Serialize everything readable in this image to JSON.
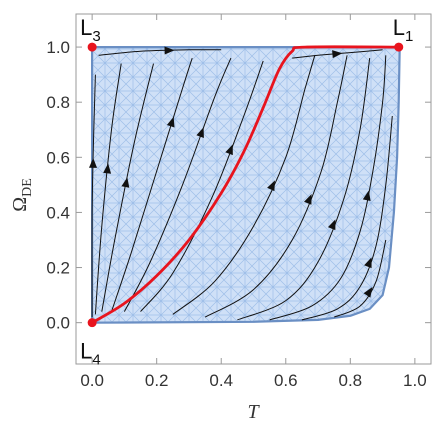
{
  "chart_data": {
    "type": "line",
    "title": "",
    "xlabel": "T",
    "ylabel": "Ω",
    "ylabel_subscript": "DE",
    "xlim": [
      -0.05,
      1.05
    ],
    "ylim": [
      -0.15,
      1.12
    ],
    "x_ticks": [
      0.0,
      0.2,
      0.4,
      0.6,
      0.8,
      1.0
    ],
    "x_tick_labels": [
      "0.0",
      "0.2",
      "0.4",
      "0.6",
      "0.8",
      "1.0"
    ],
    "y_ticks": [
      0.0,
      0.2,
      0.4,
      0.6,
      0.8,
      1.0
    ],
    "y_tick_labels": [
      "0.0",
      "0.2",
      "0.4",
      "0.6",
      "0.8",
      "1.0"
    ],
    "grid": false,
    "colors": {
      "region_fill": "#cfe0f7",
      "region_edge": "#6a8fc4",
      "special_curve": "#e8141e",
      "streamline": "#111111",
      "critical_point": "#e8141e"
    },
    "allowed_region": {
      "boundary": [
        [
          0.0,
          0.0
        ],
        [
          0.5,
          0.003
        ],
        [
          0.7,
          0.01
        ],
        [
          0.8,
          0.025
        ],
        [
          0.86,
          0.05
        ],
        [
          0.9,
          0.1
        ],
        [
          0.92,
          0.2
        ],
        [
          0.935,
          0.4
        ],
        [
          0.945,
          0.6
        ],
        [
          0.95,
          0.8
        ],
        [
          0.953,
          1.0
        ],
        [
          0.0,
          1.0
        ]
      ]
    },
    "special_trajectory": {
      "points": [
        [
          0.0,
          0.0
        ],
        [
          0.1,
          0.07
        ],
        [
          0.2,
          0.17
        ],
        [
          0.3,
          0.3
        ],
        [
          0.4,
          0.47
        ],
        [
          0.47,
          0.62
        ],
        [
          0.53,
          0.78
        ],
        [
          0.58,
          0.92
        ],
        [
          0.62,
          0.985
        ],
        [
          0.66,
          1.0
        ],
        [
          0.95,
          1.0
        ]
      ]
    },
    "streamlines": [
      {
        "points": [
          [
            0.0,
            0.02
          ],
          [
            0.0,
            0.4
          ],
          [
            0.005,
            0.7
          ],
          [
            0.01,
            0.9
          ]
        ]
      },
      {
        "points": [
          [
            0.01,
            0.03
          ],
          [
            0.03,
            0.35
          ],
          [
            0.06,
            0.7
          ],
          [
            0.09,
            0.94
          ]
        ]
      },
      {
        "points": [
          [
            0.03,
            0.04
          ],
          [
            0.07,
            0.3
          ],
          [
            0.13,
            0.65
          ],
          [
            0.19,
            0.94
          ]
        ]
      },
      {
        "points": [
          [
            0.06,
            0.04
          ],
          [
            0.12,
            0.25
          ],
          [
            0.2,
            0.55
          ],
          [
            0.28,
            0.85
          ],
          [
            0.31,
            0.96
          ]
        ]
      },
      {
        "points": [
          [
            0.1,
            0.04
          ],
          [
            0.18,
            0.22
          ],
          [
            0.28,
            0.5
          ],
          [
            0.38,
            0.82
          ],
          [
            0.43,
            0.96
          ]
        ]
      },
      {
        "points": [
          [
            0.15,
            0.04
          ],
          [
            0.25,
            0.18
          ],
          [
            0.37,
            0.45
          ],
          [
            0.47,
            0.75
          ],
          [
            0.53,
            0.95
          ]
        ]
      },
      {
        "points": [
          [
            0.25,
            0.03
          ],
          [
            0.38,
            0.15
          ],
          [
            0.5,
            0.35
          ],
          [
            0.6,
            0.6
          ],
          [
            0.66,
            0.85
          ],
          [
            0.69,
            0.97
          ]
        ]
      },
      {
        "points": [
          [
            0.35,
            0.02
          ],
          [
            0.5,
            0.12
          ],
          [
            0.62,
            0.3
          ],
          [
            0.71,
            0.55
          ],
          [
            0.76,
            0.8
          ],
          [
            0.79,
            0.97
          ]
        ]
      },
      {
        "points": [
          [
            0.45,
            0.01
          ],
          [
            0.6,
            0.08
          ],
          [
            0.7,
            0.22
          ],
          [
            0.78,
            0.45
          ],
          [
            0.83,
            0.7
          ],
          [
            0.86,
            0.96
          ]
        ]
      },
      {
        "points": [
          [
            0.55,
            0.01
          ],
          [
            0.68,
            0.06
          ],
          [
            0.77,
            0.16
          ],
          [
            0.83,
            0.33
          ],
          [
            0.87,
            0.55
          ],
          [
            0.9,
            0.8
          ],
          [
            0.91,
            0.97
          ]
        ]
      },
      {
        "points": [
          [
            0.65,
            0.01
          ],
          [
            0.76,
            0.05
          ],
          [
            0.83,
            0.13
          ],
          [
            0.88,
            0.28
          ],
          [
            0.91,
            0.5
          ],
          [
            0.93,
            0.75
          ]
        ]
      },
      {
        "points": [
          [
            0.75,
            0.02
          ],
          [
            0.83,
            0.06
          ],
          [
            0.88,
            0.15
          ],
          [
            0.91,
            0.3
          ]
        ]
      },
      {
        "points": [
          [
            0.02,
            0.97
          ],
          [
            0.15,
            0.985
          ],
          [
            0.3,
            0.99
          ],
          [
            0.4,
            0.99
          ]
        ]
      },
      {
        "points": [
          [
            0.62,
            0.96
          ],
          [
            0.7,
            0.97
          ],
          [
            0.8,
            0.98
          ],
          [
            0.9,
            0.99
          ]
        ]
      }
    ],
    "critical_points": [
      {
        "label": "L",
        "subscript": "1",
        "x": 0.95,
        "y": 1.0
      },
      {
        "label": "L",
        "subscript": "3",
        "x": 0.0,
        "y": 1.0
      },
      {
        "label": "L",
        "subscript": "4",
        "x": 0.0,
        "y": 0.0
      }
    ]
  }
}
